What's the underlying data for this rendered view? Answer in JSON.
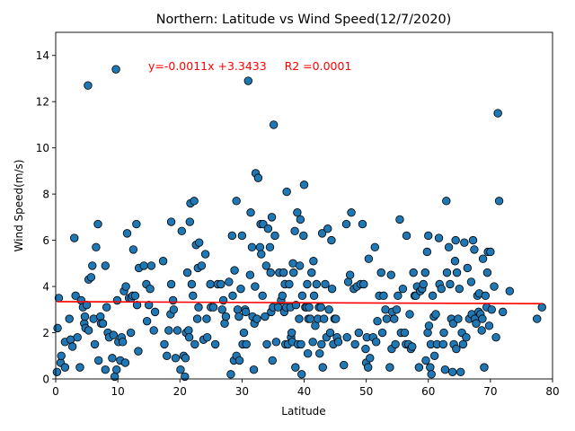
{
  "chart_data": {
    "type": "scatter",
    "title": "Northern: Latitude vs Wind Speed(12/7/2020)",
    "xlabel": "Latitude",
    "ylabel": "Wind Speed(m/s)",
    "xlim": [
      0,
      80
    ],
    "ylim": [
      0,
      15
    ],
    "xticks": [
      "0",
      "10",
      "20",
      "30",
      "40",
      "50",
      "60",
      "70",
      "80"
    ],
    "yticks": [
      "0",
      "2",
      "4",
      "6",
      "8",
      "10",
      "12",
      "14"
    ],
    "grid": false,
    "annotation": "y=-0.0011x +3.3433     R2 =0.0001",
    "regression": {
      "slope": -0.0011,
      "intercept": 3.3433
    },
    "colors": {
      "points": "#1f77b4",
      "point_edge": "#000000",
      "regression": "#ff0000"
    },
    "points": [
      [
        0.2,
        0.3
      ],
      [
        0.3,
        2.2
      ],
      [
        0.5,
        3.5
      ],
      [
        0.8,
        0.7
      ],
      [
        0.9,
        1.0
      ],
      [
        1.5,
        0.5
      ],
      [
        1.5,
        1.6
      ],
      [
        2.2,
        2.6
      ],
      [
        2.4,
        1.7
      ],
      [
        2.7,
        1.4
      ],
      [
        3.0,
        6.1
      ],
      [
        3.2,
        3.6
      ],
      [
        3.5,
        1.8
      ],
      [
        3.9,
        0.5
      ],
      [
        4.1,
        3.4
      ],
      [
        4.4,
        3.1
      ],
      [
        4.6,
        2.4
      ],
      [
        4.7,
        2.7
      ],
      [
        4.8,
        2.2
      ],
      [
        5.0,
        3.2
      ],
      [
        5.2,
        12.7
      ],
      [
        5.3,
        2.1
      ],
      [
        5.3,
        4.3
      ],
      [
        5.7,
        4.4
      ],
      [
        5.9,
        4.9
      ],
      [
        6.1,
        2.6
      ],
      [
        6.3,
        1.5
      ],
      [
        6.5,
        5.7
      ],
      [
        6.8,
        6.7
      ],
      [
        6.9,
        0.8
      ],
      [
        7.2,
        2.7
      ],
      [
        7.3,
        2.4
      ],
      [
        7.6,
        2.4
      ],
      [
        8.0,
        0.4
      ],
      [
        8.0,
        4.9
      ],
      [
        8.2,
        3.1
      ],
      [
        8.4,
        2.0
      ],
      [
        8.6,
        1.8
      ],
      [
        9.1,
        0.9
      ],
      [
        9.3,
        1.9
      ],
      [
        9.5,
        0.1
      ],
      [
        9.7,
        13.4
      ],
      [
        9.8,
        0.4
      ],
      [
        9.9,
        3.4
      ],
      [
        10.1,
        1.6
      ],
      [
        10.4,
        0.8
      ],
      [
        10.6,
        1.8
      ],
      [
        10.8,
        1.6
      ],
      [
        11.0,
        3.8
      ],
      [
        11.2,
        0.7
      ],
      [
        11.3,
        4.0
      ],
      [
        11.5,
        6.3
      ],
      [
        11.8,
        3.5
      ],
      [
        12.1,
        2.0
      ],
      [
        12.2,
        3.5
      ],
      [
        12.4,
        3.6
      ],
      [
        12.5,
        5.6
      ],
      [
        12.8,
        3.6
      ],
      [
        13.0,
        6.7
      ],
      [
        13.1,
        3.2
      ],
      [
        13.3,
        1.2
      ],
      [
        13.4,
        4.8
      ],
      [
        14.2,
        4.9
      ],
      [
        14.6,
        4.1
      ],
      [
        14.7,
        2.5
      ],
      [
        15.0,
        3.2
      ],
      [
        15.2,
        3.9
      ],
      [
        15.4,
        4.9
      ],
      [
        15.8,
        2.1
      ],
      [
        16.0,
        2.9
      ],
      [
        17.3,
        5.1
      ],
      [
        17.5,
        1.5
      ],
      [
        17.9,
        1.0
      ],
      [
        18.2,
        2.1
      ],
      [
        18.5,
        2.8
      ],
      [
        18.6,
        4.1
      ],
      [
        18.6,
        6.8
      ],
      [
        18.9,
        3.4
      ],
      [
        19.0,
        3.0
      ],
      [
        19.3,
        0.9
      ],
      [
        19.6,
        2.1
      ],
      [
        20.1,
        0.4
      ],
      [
        20.3,
        6.4
      ],
      [
        20.6,
        1.0
      ],
      [
        20.8,
        0.1
      ],
      [
        20.9,
        0.9
      ],
      [
        21.0,
        2.0
      ],
      [
        21.2,
        4.6
      ],
      [
        21.4,
        2.1
      ],
      [
        21.5,
        1.8
      ],
      [
        21.6,
        6.8
      ],
      [
        21.7,
        7.6
      ],
      [
        21.9,
        4.1
      ],
      [
        22.1,
        3.6
      ],
      [
        22.3,
        7.7
      ],
      [
        22.4,
        1.5
      ],
      [
        22.6,
        5.8
      ],
      [
        22.8,
        2.6
      ],
      [
        22.9,
        4.8
      ],
      [
        23.0,
        3.1
      ],
      [
        23.1,
        5.9
      ],
      [
        23.5,
        4.9
      ],
      [
        23.8,
        1.7
      ],
      [
        24.1,
        5.4
      ],
      [
        24.3,
        2.6
      ],
      [
        24.4,
        1.8
      ],
      [
        24.9,
        4.1
      ],
      [
        25.0,
        3.1
      ],
      [
        25.4,
        3.1
      ],
      [
        25.7,
        1.5
      ],
      [
        26.1,
        4.1
      ],
      [
        26.6,
        4.1
      ],
      [
        26.8,
        3.0
      ],
      [
        27.0,
        3.4
      ],
      [
        27.2,
        2.4
      ],
      [
        27.4,
        2.7
      ],
      [
        27.9,
        4.2
      ],
      [
        28.2,
        0.2
      ],
      [
        28.4,
        6.2
      ],
      [
        28.5,
        3.6
      ],
      [
        28.7,
        0.8
      ],
      [
        28.8,
        4.7
      ],
      [
        29.1,
        1.0
      ],
      [
        29.1,
        7.7
      ],
      [
        29.3,
        3.0
      ],
      [
        29.5,
        2.7
      ],
      [
        29.6,
        0.8
      ],
      [
        29.8,
        3.9
      ],
      [
        30.0,
        6.2
      ],
      [
        30.1,
        1.5
      ],
      [
        30.3,
        2.0
      ],
      [
        30.5,
        3.0
      ],
      [
        30.6,
        2.9
      ],
      [
        30.7,
        1.5
      ],
      [
        31.0,
        12.9
      ],
      [
        31.3,
        4.5
      ],
      [
        31.4,
        7.2
      ],
      [
        31.6,
        5.7
      ],
      [
        31.7,
        2.7
      ],
      [
        31.9,
        0.4
      ],
      [
        32.0,
        2.4
      ],
      [
        32.1,
        4.0
      ],
      [
        32.2,
        8.9
      ],
      [
        32.4,
        2.6
      ],
      [
        32.6,
        8.7
      ],
      [
        32.9,
        5.7
      ],
      [
        33.0,
        6.7
      ],
      [
        33.1,
        5.4
      ],
      [
        33.3,
        3.6
      ],
      [
        33.4,
        6.7
      ],
      [
        33.7,
        2.7
      ],
      [
        33.9,
        4.9
      ],
      [
        34.0,
        1.5
      ],
      [
        34.2,
        6.5
      ],
      [
        34.5,
        5.7
      ],
      [
        34.6,
        4.6
      ],
      [
        34.7,
        2.9
      ],
      [
        34.8,
        7.0
      ],
      [
        34.9,
        0.8
      ],
      [
        35.0,
        3.1
      ],
      [
        35.1,
        11.0
      ],
      [
        35.3,
        6.2
      ],
      [
        35.5,
        1.6
      ],
      [
        35.8,
        3.1
      ],
      [
        36.0,
        4.6
      ],
      [
        36.3,
        3.4
      ],
      [
        36.5,
        3.6
      ],
      [
        36.7,
        4.6
      ],
      [
        36.8,
        2.9
      ],
      [
        36.9,
        4.1
      ],
      [
        37.0,
        1.5
      ],
      [
        37.1,
        3.1
      ],
      [
        37.2,
        8.1
      ],
      [
        37.4,
        1.5
      ],
      [
        37.6,
        4.1
      ],
      [
        37.8,
        3.1
      ],
      [
        37.9,
        1.8
      ],
      [
        38.0,
        2.0
      ],
      [
        38.1,
        1.6
      ],
      [
        38.2,
        5.0
      ],
      [
        38.3,
        4.6
      ],
      [
        38.5,
        6.4
      ],
      [
        38.6,
        0.5
      ],
      [
        38.7,
        3.2
      ],
      [
        38.9,
        7.2
      ],
      [
        39.0,
        1.5
      ],
      [
        39.2,
        2.6
      ],
      [
        39.3,
        4.9
      ],
      [
        39.4,
        6.9
      ],
      [
        39.5,
        1.5
      ],
      [
        39.6,
        0.2
      ],
      [
        39.7,
        3.6
      ],
      [
        39.9,
        6.2
      ],
      [
        40.0,
        8.4
      ],
      [
        40.2,
        3.1
      ],
      [
        40.4,
        3.1
      ],
      [
        40.5,
        4.1
      ],
      [
        40.6,
        1.1
      ],
      [
        40.7,
        2.6
      ],
      [
        40.8,
        3.1
      ],
      [
        41.0,
        2.6
      ],
      [
        41.2,
        4.6
      ],
      [
        41.4,
        1.6
      ],
      [
        41.5,
        5.1
      ],
      [
        41.6,
        3.6
      ],
      [
        41.8,
        2.3
      ],
      [
        42.0,
        4.1
      ],
      [
        42.2,
        2.6
      ],
      [
        42.4,
        3.1
      ],
      [
        42.5,
        1.1
      ],
      [
        42.7,
        3.1
      ],
      [
        42.8,
        1.5
      ],
      [
        42.9,
        6.3
      ],
      [
        43.0,
        0.5
      ],
      [
        43.2,
        2.6
      ],
      [
        43.4,
        4.1
      ],
      [
        43.6,
        1.8
      ],
      [
        43.8,
        6.5
      ],
      [
        44.0,
        3.0
      ],
      [
        44.2,
        2.0
      ],
      [
        44.4,
        6.0
      ],
      [
        44.5,
        3.9
      ],
      [
        44.7,
        1.5
      ],
      [
        44.9,
        2.6
      ],
      [
        45.1,
        2.6
      ],
      [
        45.3,
        1.8
      ],
      [
        45.5,
        1.6
      ],
      [
        46.4,
        0.6
      ],
      [
        46.8,
        6.7
      ],
      [
        46.9,
        1.8
      ],
      [
        47.1,
        4.2
      ],
      [
        47.4,
        4.5
      ],
      [
        47.6,
        7.2
      ],
      [
        48.0,
        3.9
      ],
      [
        48.2,
        1.5
      ],
      [
        48.5,
        4.0
      ],
      [
        48.8,
        2.0
      ],
      [
        49.1,
        4.1
      ],
      [
        49.4,
        6.7
      ],
      [
        49.6,
        4.1
      ],
      [
        49.9,
        1.3
      ],
      [
        50.0,
        0.7
      ],
      [
        50.1,
        1.8
      ],
      [
        50.3,
        0.5
      ],
      [
        50.4,
        5.2
      ],
      [
        50.6,
        0.9
      ],
      [
        51.1,
        1.8
      ],
      [
        51.4,
        5.7
      ],
      [
        51.6,
        1.6
      ],
      [
        51.8,
        2.5
      ],
      [
        52.1,
        3.6
      ],
      [
        52.4,
        4.6
      ],
      [
        52.6,
        2.0
      ],
      [
        52.8,
        3.6
      ],
      [
        53.1,
        3.0
      ],
      [
        53.3,
        2.6
      ],
      [
        53.8,
        0.5
      ],
      [
        54.0,
        4.5
      ],
      [
        54.1,
        1.3
      ],
      [
        54.2,
        2.9
      ],
      [
        54.5,
        2.6
      ],
      [
        54.7,
        1.5
      ],
      [
        54.9,
        3.0
      ],
      [
        55.1,
        3.6
      ],
      [
        55.4,
        6.9
      ],
      [
        55.6,
        2.0
      ],
      [
        55.9,
        3.9
      ],
      [
        56.2,
        2.0
      ],
      [
        56.4,
        1.5
      ],
      [
        56.5,
        6.2
      ],
      [
        56.8,
        1.5
      ],
      [
        57.0,
        2.8
      ],
      [
        57.2,
        1.3
      ],
      [
        57.4,
        1.4
      ],
      [
        57.6,
        4.6
      ],
      [
        57.8,
        3.6
      ],
      [
        58.0,
        3.6
      ],
      [
        58.2,
        4.0
      ],
      [
        58.5,
        0.5
      ],
      [
        58.7,
        3.8
      ],
      [
        59.0,
        3.9
      ],
      [
        59.2,
        4.1
      ],
      [
        59.5,
        4.6
      ],
      [
        59.6,
        0.8
      ],
      [
        59.8,
        5.5
      ],
      [
        59.9,
        2.0
      ],
      [
        60.0,
        6.2
      ],
      [
        60.1,
        2.3
      ],
      [
        60.3,
        0.5
      ],
      [
        60.4,
        1.5
      ],
      [
        60.5,
        0.2
      ],
      [
        60.7,
        3.6
      ],
      [
        60.9,
        2.7
      ],
      [
        61.0,
        1.0
      ],
      [
        61.2,
        2.8
      ],
      [
        61.4,
        1.5
      ],
      [
        61.7,
        6.1
      ],
      [
        61.8,
        4.1
      ],
      [
        62.1,
        3.9
      ],
      [
        62.4,
        1.5
      ],
      [
        62.5,
        2.0
      ],
      [
        62.7,
        0.4
      ],
      [
        62.9,
        7.7
      ],
      [
        63.0,
        4.6
      ],
      [
        63.3,
        5.7
      ],
      [
        63.5,
        4.1
      ],
      [
        63.7,
        2.6
      ],
      [
        63.9,
        0.3
      ],
      [
        64.0,
        2.4
      ],
      [
        64.1,
        1.5
      ],
      [
        64.3,
        5.1
      ],
      [
        64.4,
        6.0
      ],
      [
        64.5,
        1.3
      ],
      [
        64.6,
        4.6
      ],
      [
        64.8,
        2.6
      ],
      [
        65.0,
        3.9
      ],
      [
        65.2,
        0.3
      ],
      [
        65.4,
        2.0
      ],
      [
        65.6,
        1.5
      ],
      [
        65.8,
        5.9
      ],
      [
        66.1,
        1.8
      ],
      [
        66.3,
        4.8
      ],
      [
        66.6,
        2.6
      ],
      [
        66.9,
        4.2
      ],
      [
        67.0,
        2.8
      ],
      [
        67.2,
        6.0
      ],
      [
        67.4,
        5.6
      ],
      [
        67.5,
        2.6
      ],
      [
        67.7,
        2.4
      ],
      [
        67.9,
        3.6
      ],
      [
        68.1,
        2.9
      ],
      [
        68.2,
        3.7
      ],
      [
        68.4,
        2.8
      ],
      [
        68.6,
        2.1
      ],
      [
        68.7,
        2.6
      ],
      [
        68.8,
        5.2
      ],
      [
        69.0,
        0.5
      ],
      [
        69.2,
        3.6
      ],
      [
        69.4,
        3.1
      ],
      [
        69.5,
        4.6
      ],
      [
        69.6,
        5.5
      ],
      [
        69.8,
        2.3
      ],
      [
        70.0,
        5.5
      ],
      [
        70.2,
        3.0
      ],
      [
        70.6,
        4.0
      ],
      [
        70.9,
        1.8
      ],
      [
        71.2,
        11.5
      ],
      [
        71.4,
        7.7
      ],
      [
        72.0,
        2.9
      ],
      [
        73.1,
        3.8
      ],
      [
        77.5,
        2.6
      ],
      [
        78.3,
        3.1
      ]
    ]
  }
}
